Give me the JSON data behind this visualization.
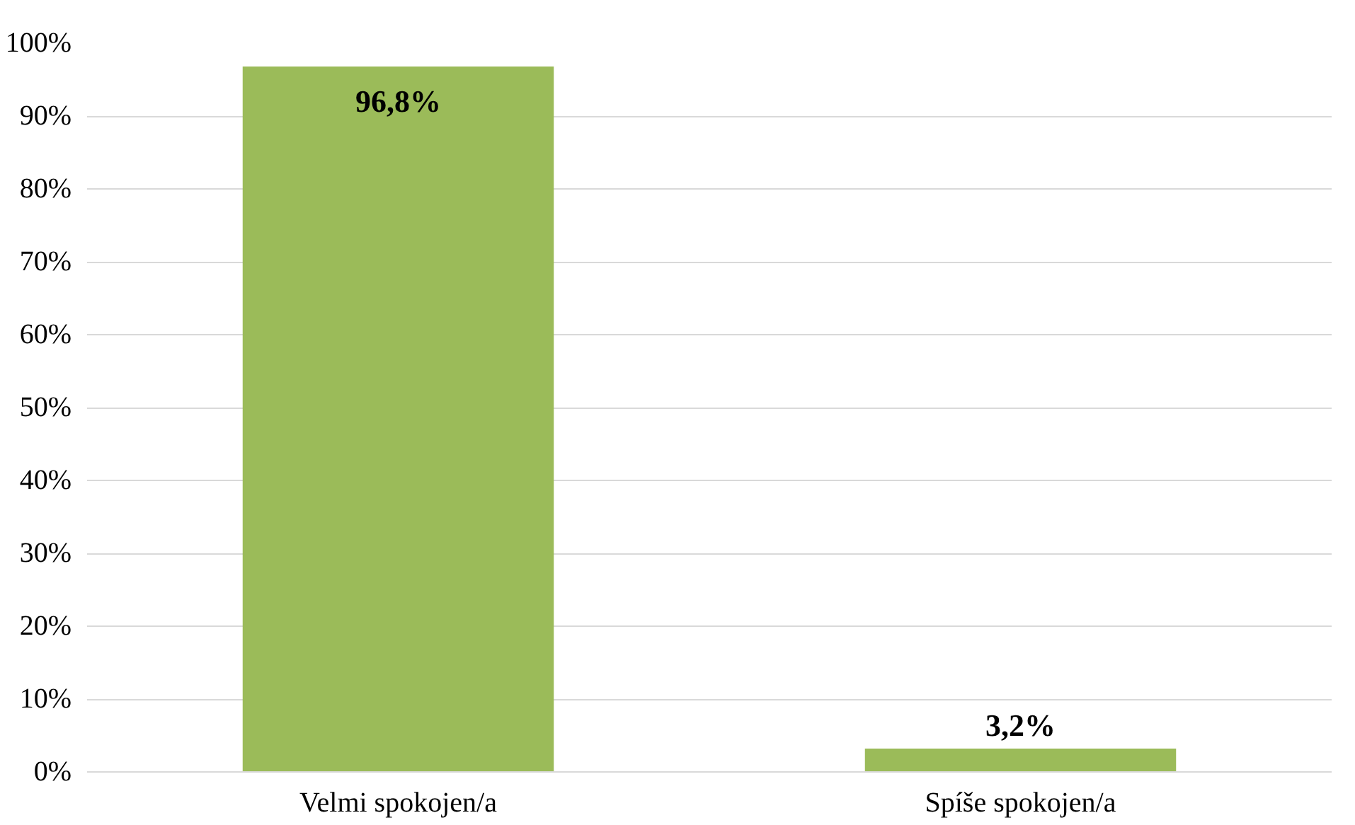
{
  "chart_data": {
    "type": "bar",
    "categories": [
      "Velmi spokojen/a",
      "Spíše spokojen/a"
    ],
    "values": [
      96.8,
      3.2
    ],
    "value_labels": [
      "96,8%",
      "3,2%"
    ],
    "color": "#9bbb59",
    "ylim": [
      0,
      100
    ],
    "yticks": [
      {
        "value": 0,
        "label": "0%"
      },
      {
        "value": 10,
        "label": "10%"
      },
      {
        "value": 20,
        "label": "20%"
      },
      {
        "value": 30,
        "label": "30%"
      },
      {
        "value": 40,
        "label": "40%"
      },
      {
        "value": 50,
        "label": "50%"
      },
      {
        "value": 60,
        "label": "60%"
      },
      {
        "value": 70,
        "label": "70%"
      },
      {
        "value": 80,
        "label": "80%"
      },
      {
        "value": 90,
        "label": "90%"
      },
      {
        "value": 100,
        "label": "100%"
      }
    ],
    "grid": "y"
  }
}
